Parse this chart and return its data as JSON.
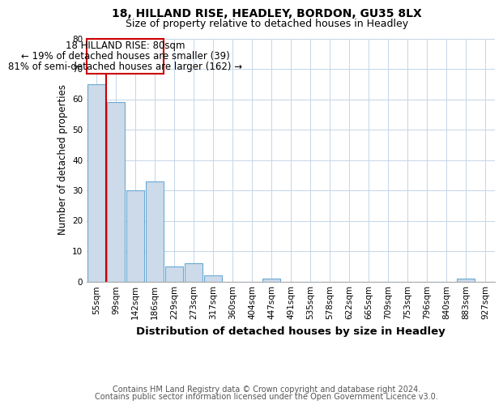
{
  "title1": "18, HILLAND RISE, HEADLEY, BORDON, GU35 8LX",
  "title2": "Size of property relative to detached houses in Headley",
  "xlabel": "Distribution of detached houses by size in Headley",
  "ylabel": "Number of detached properties",
  "categories": [
    "55sqm",
    "99sqm",
    "142sqm",
    "186sqm",
    "229sqm",
    "273sqm",
    "317sqm",
    "360sqm",
    "404sqm",
    "447sqm",
    "491sqm",
    "535sqm",
    "578sqm",
    "622sqm",
    "665sqm",
    "709sqm",
    "753sqm",
    "796sqm",
    "840sqm",
    "883sqm",
    "927sqm"
  ],
  "values": [
    65,
    59,
    30,
    33,
    5,
    6,
    2,
    0,
    0,
    1,
    0,
    0,
    0,
    0,
    0,
    0,
    0,
    0,
    0,
    1,
    0
  ],
  "bar_color": "#ccdaea",
  "bar_edge_color": "#6aaad4",
  "ylim": [
    0,
    80
  ],
  "yticks": [
    0,
    10,
    20,
    30,
    40,
    50,
    60,
    70,
    80
  ],
  "annotation_text_line1": "18 HILLAND RISE: 80sqm",
  "annotation_text_line2": "← 19% of detached houses are smaller (39)",
  "annotation_text_line3": "81% of semi-detached houses are larger (162) →",
  "annotation_box_color": "#cc0000",
  "vline_color": "#cc0000",
  "grid_color": "#c5d5e8",
  "footnote1": "Contains HM Land Registry data © Crown copyright and database right 2024.",
  "footnote2": "Contains public sector information licensed under the Open Government Licence v3.0.",
  "title1_fontsize": 10,
  "title2_fontsize": 9,
  "xlabel_fontsize": 9.5,
  "ylabel_fontsize": 8.5,
  "tick_fontsize": 7.5,
  "footnote_fontsize": 7,
  "annotation_fontsize": 8.5,
  "vline_x": 0.5
}
